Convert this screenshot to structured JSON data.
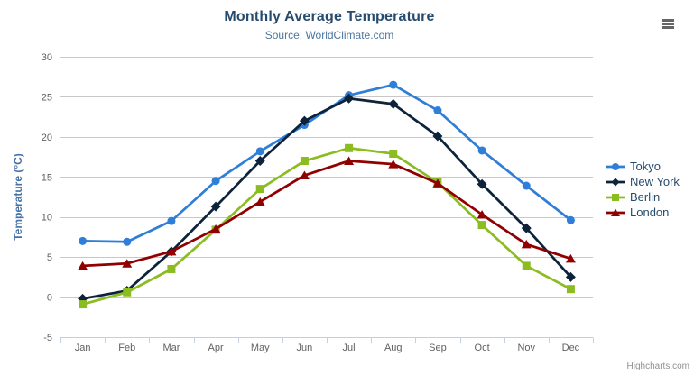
{
  "chart": {
    "credits_label": "Highcharts.com",
    "export_menu_icon": "hamburger-menu-icon"
  },
  "chart_data": {
    "type": "line",
    "title": "Monthly Average Temperature",
    "subtitle": "Source: WorldClimate.com",
    "xlabel": "",
    "ylabel": "Temperature (°C)",
    "categories": [
      "Jan",
      "Feb",
      "Mar",
      "Apr",
      "May",
      "Jun",
      "Jul",
      "Aug",
      "Sep",
      "Oct",
      "Nov",
      "Dec"
    ],
    "ylim": [
      -5,
      30
    ],
    "yticks": [
      -5,
      0,
      5,
      10,
      15,
      20,
      25,
      30
    ],
    "grid": true,
    "legend_position": "right",
    "series": [
      {
        "name": "Tokyo",
        "color": "#2f7ed8",
        "marker": "circle",
        "values": [
          7.0,
          6.9,
          9.5,
          14.5,
          18.2,
          21.5,
          25.2,
          26.5,
          23.3,
          18.3,
          13.9,
          9.6
        ]
      },
      {
        "name": "New York",
        "color": "#0d233a",
        "marker": "diamond",
        "values": [
          -0.2,
          0.8,
          5.7,
          11.3,
          17.0,
          22.0,
          24.8,
          24.1,
          20.1,
          14.1,
          8.6,
          2.5
        ]
      },
      {
        "name": "Berlin",
        "color": "#8bbc21",
        "marker": "square",
        "values": [
          -0.9,
          0.6,
          3.5,
          8.4,
          13.5,
          17.0,
          18.6,
          17.9,
          14.3,
          9.0,
          3.9,
          1.0
        ]
      },
      {
        "name": "London",
        "color": "#910000",
        "marker": "triangle",
        "values": [
          3.9,
          4.2,
          5.7,
          8.5,
          11.9,
          15.2,
          17.0,
          16.6,
          14.2,
          10.3,
          6.6,
          4.8
        ]
      }
    ],
    "style": {
      "title_color": "#274b6d",
      "subtitle_color": "#4d759e",
      "axis_label_color": "#606060",
      "axis_title_color": "#4572a7",
      "gridline_color": "#c8c8c8",
      "axis_line_color": "#c0d0e0",
      "legend_text_color": "#274b6d",
      "credits_color": "#909090"
    }
  }
}
